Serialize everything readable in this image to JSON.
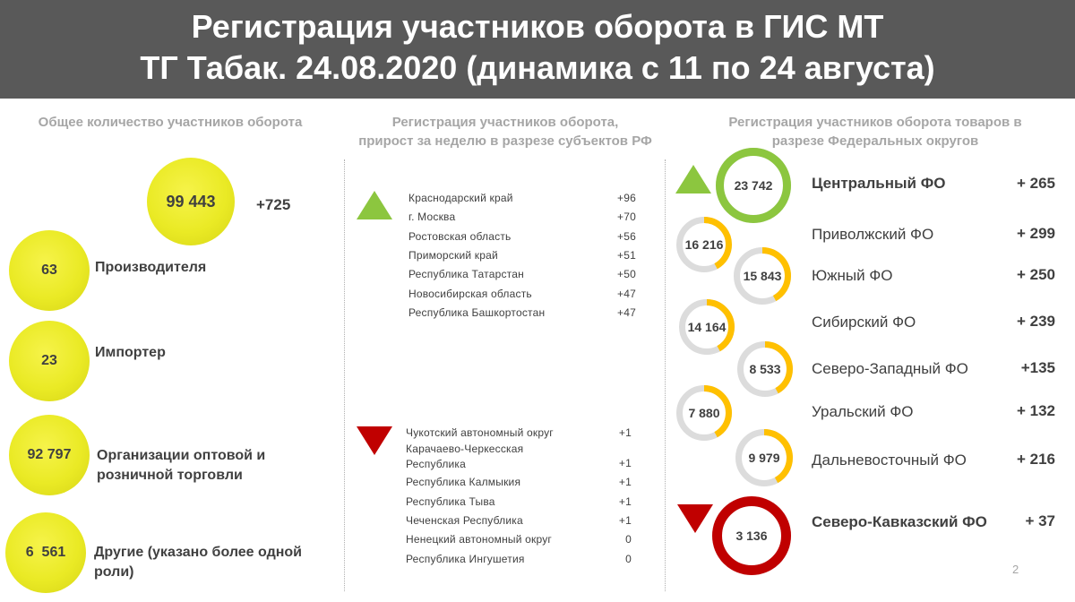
{
  "header": {
    "line1": "Регистрация участников оборота в ГИС МТ",
    "line2": "ТГ Табак. 24.08.2020 (динамика с 11 по 24 августа)"
  },
  "left": {
    "title": "Общее количество участников оборота",
    "total": {
      "value": "99 443",
      "delta": "+725"
    },
    "items": [
      {
        "value": "63",
        "label": "Производителя"
      },
      {
        "value": "23",
        "label": "Импортер"
      },
      {
        "value": "92 797",
        "label_line1": "Организации оптовой и",
        "label_line2": "розничной торговли"
      },
      {
        "value": "6  561",
        "label_line1": "Другие (указано более одной",
        "label_line2": "роли)"
      }
    ]
  },
  "middle": {
    "title_line1": "Регистрация участников оборота,",
    "title_line2": "прирост за неделю в разрезе субъектов РФ",
    "top": [
      {
        "name": "Краснодарский край",
        "value": "+96"
      },
      {
        "name": "г. Москва",
        "value": "+70"
      },
      {
        "name": "Ростовская область",
        "value": "+56"
      },
      {
        "name": "Приморский край",
        "value": "+51"
      },
      {
        "name": "Республика Татарстан",
        "value": "+50"
      },
      {
        "name": "Новосибирская область",
        "value": "+47"
      },
      {
        "name": "Республика Башкортостан",
        "value": "+47"
      }
    ],
    "bottom": [
      {
        "name": "Чукотский автономный округ",
        "value": "+1"
      },
      {
        "name_line1": "Карачаево-Черкесская",
        "name_line2": "Республика",
        "value": "+1"
      },
      {
        "name": "Республика Калмыкия",
        "value": "+1"
      },
      {
        "name": "Республика Тыва",
        "value": "+1"
      },
      {
        "name": "Чеченская Республика",
        "value": "+1"
      },
      {
        "name": "Ненецкий автономный округ",
        "value": "0"
      },
      {
        "name": "Республика Ингушетия",
        "value": "0"
      }
    ]
  },
  "right": {
    "title_line1": "Регистрация участников оборота товаров в",
    "title_line2": "разрезе Федеральных округов",
    "districts": [
      {
        "name": "Центральный ФО",
        "count": "23 742",
        "delta": "+ 265",
        "fill": 1.0,
        "ring_color": "#8cc63f"
      },
      {
        "name": "Приволжский ФО",
        "count": "16 216",
        "delta": "+ 299",
        "fill": 0.42,
        "ring_color": "#ffc000"
      },
      {
        "name": "Южный ФО",
        "count": "15 843",
        "delta": "+ 250",
        "fill": 0.42,
        "ring_color": "#ffc000"
      },
      {
        "name": "Сибирский ФО",
        "count": "14 164",
        "delta": "+ 239",
        "fill": 0.42,
        "ring_color": "#ffc000"
      },
      {
        "name": "Северо-Западный ФО",
        "count": "8 533",
        "delta": "+135",
        "fill": 0.42,
        "ring_color": "#ffc000"
      },
      {
        "name": "Уральский ФО",
        "count": "7 880",
        "delta": "+ 132",
        "fill": 0.42,
        "ring_color": "#ffc000"
      },
      {
        "name": "Дальневосточный ФО",
        "count": "9 979",
        "delta": "+ 216",
        "fill": 0.42,
        "ring_color": "#ffc000"
      },
      {
        "name": "Северо-Кавказский ФО",
        "count": "3 136",
        "delta": "+ 37",
        "fill": 1.0,
        "ring_color": "#c00000"
      }
    ]
  },
  "page_number": "2",
  "colors": {
    "header_bg": "#595959",
    "up": "#8cc63f",
    "down": "#c00000",
    "accent": "#ffc000",
    "yellow": "#eaea25"
  }
}
